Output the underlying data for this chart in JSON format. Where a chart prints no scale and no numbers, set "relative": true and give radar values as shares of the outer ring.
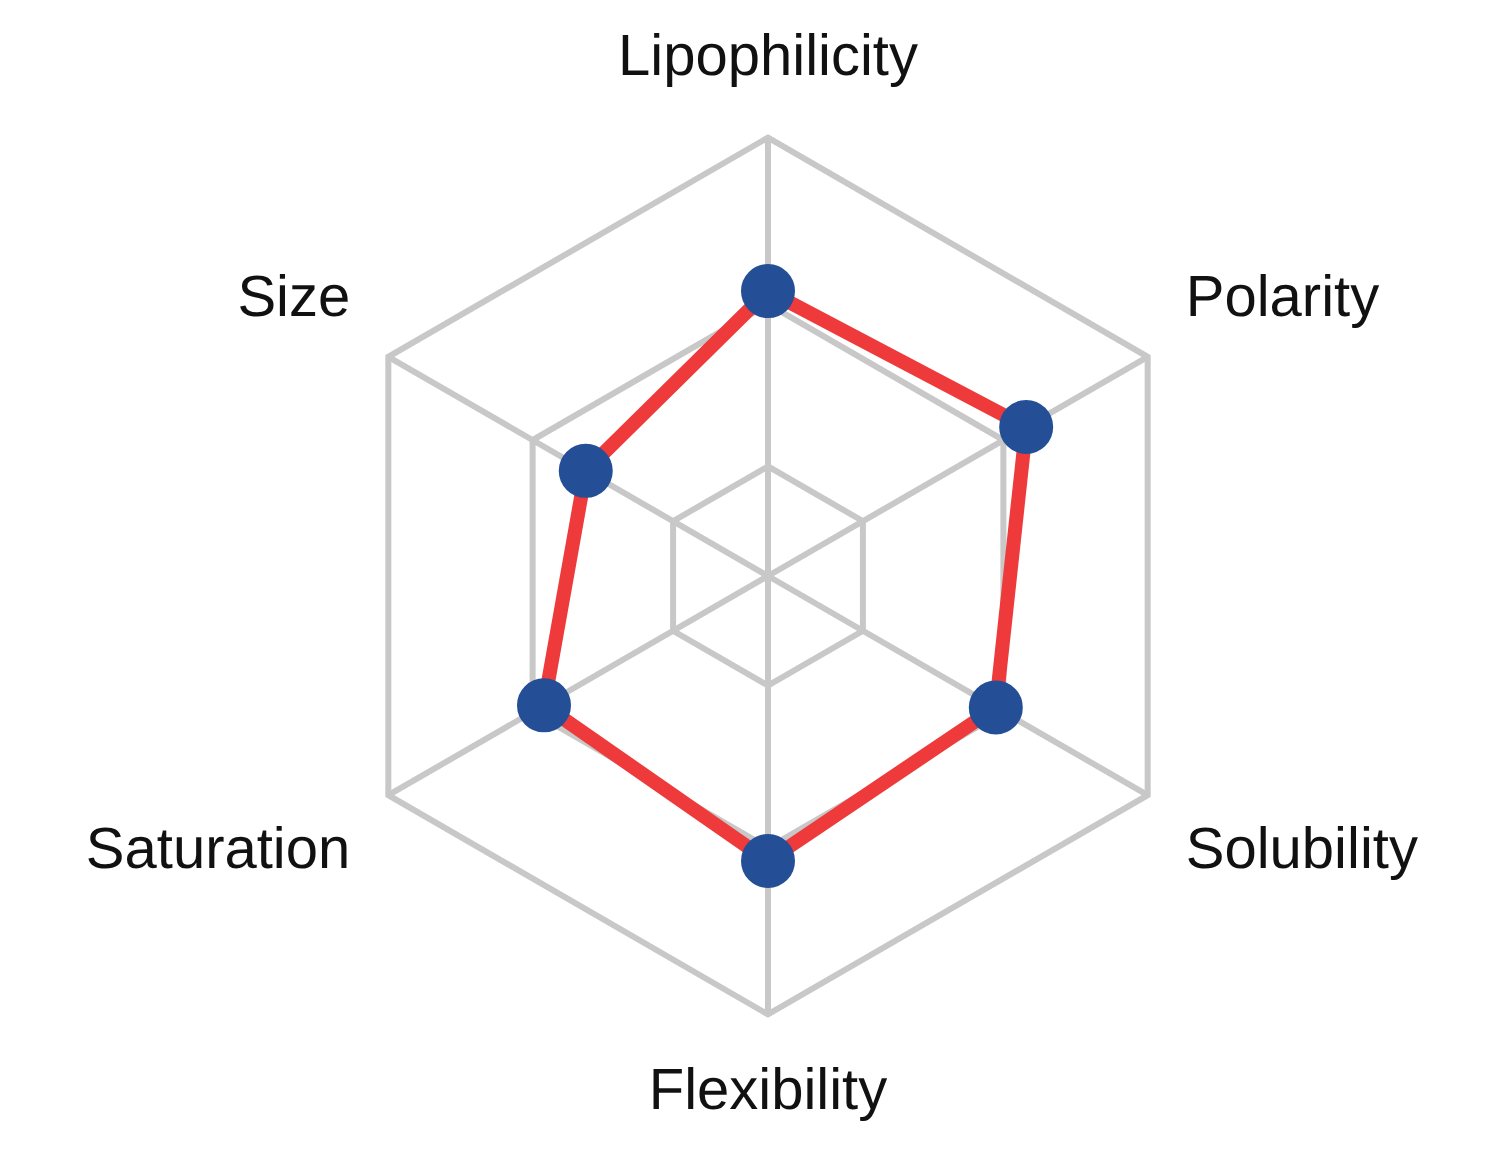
{
  "chart_data": {
    "type": "radar",
    "relative": true,
    "categories": [
      "Lipophilicity",
      "Polarity",
      "Solubility",
      "Flexibility",
      "Saturation",
      "Size"
    ],
    "series": [
      {
        "color": "#ee3a3a",
        "colors": [
          "#244f96",
          "#244f96",
          "#244f96",
          "#244f96",
          "#244f96",
          "#244f96"
        ],
        "values": [
          0.65,
          0.68,
          0.6,
          0.65,
          0.59,
          0.48
        ]
      }
    ],
    "grid": true,
    "marker": "circle",
    "legend": false
  }
}
